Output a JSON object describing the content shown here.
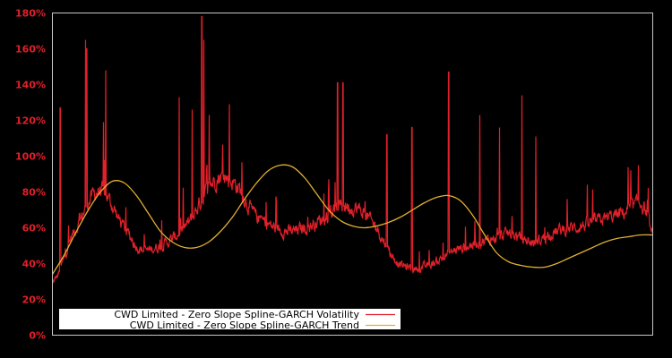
{
  "chart_data": {
    "type": "line",
    "title": "",
    "xlabel": "",
    "ylabel": "",
    "ylim": [
      0,
      180
    ],
    "y_ticks": [
      "0%",
      "20%",
      "40%",
      "60%",
      "80%",
      "100%",
      "120%",
      "140%",
      "160%",
      "180%"
    ],
    "grid": false,
    "legend_position": "lower left",
    "background": "#000000",
    "axis_frame_color": "#c8c8c8",
    "tick_label_color": "#e0202a",
    "x_range_index": [
      0,
      100
    ],
    "series": [
      {
        "name": "CWD Limited - Zero Slope Spline-GARCH Volatility",
        "color": "#e0202a",
        "note": "noisy daily volatility; baseline values approximate (x as % of time range, y in %)",
        "baseline": [
          [
            0,
            28
          ],
          [
            1,
            33
          ],
          [
            2,
            42
          ],
          [
            3,
            52
          ],
          [
            4,
            58
          ],
          [
            5,
            65
          ],
          [
            6,
            72
          ],
          [
            7,
            77
          ],
          [
            8,
            78
          ],
          [
            9,
            76
          ],
          [
            10,
            70
          ],
          [
            11,
            63
          ],
          [
            12,
            58
          ],
          [
            13,
            53
          ],
          [
            14,
            48
          ],
          [
            15,
            46
          ],
          [
            16,
            46
          ],
          [
            17,
            47
          ],
          [
            18,
            48
          ],
          [
            19,
            50
          ],
          [
            20,
            52
          ],
          [
            21,
            55
          ],
          [
            22,
            58
          ],
          [
            23,
            62
          ],
          [
            24,
            68
          ],
          [
            25,
            74
          ],
          [
            26,
            80
          ],
          [
            27,
            84
          ],
          [
            28,
            86
          ],
          [
            29,
            85
          ],
          [
            30,
            83
          ],
          [
            31,
            80
          ],
          [
            32,
            74
          ],
          [
            33,
            68
          ],
          [
            34,
            64
          ],
          [
            35,
            62
          ],
          [
            36,
            60
          ],
          [
            37,
            58
          ],
          [
            38,
            57
          ],
          [
            39,
            56
          ],
          [
            40,
            56
          ],
          [
            41,
            57
          ],
          [
            42,
            58
          ],
          [
            43,
            59
          ],
          [
            44,
            61
          ],
          [
            45,
            63
          ],
          [
            46,
            65
          ],
          [
            47,
            68
          ],
          [
            48,
            70
          ],
          [
            49,
            70
          ],
          [
            50,
            69
          ],
          [
            51,
            68
          ],
          [
            52,
            66
          ],
          [
            53,
            62
          ],
          [
            54,
            58
          ],
          [
            55,
            52
          ],
          [
            56,
            46
          ],
          [
            57,
            41
          ],
          [
            58,
            38
          ],
          [
            59,
            37
          ],
          [
            60,
            36
          ],
          [
            61,
            36
          ],
          [
            62,
            37
          ],
          [
            63,
            38
          ],
          [
            64,
            40
          ],
          [
            65,
            42
          ],
          [
            66,
            44
          ],
          [
            67,
            46
          ],
          [
            68,
            47
          ],
          [
            69,
            48
          ],
          [
            70,
            49
          ],
          [
            71,
            50
          ],
          [
            72,
            51
          ],
          [
            73,
            52
          ],
          [
            74,
            53
          ],
          [
            75,
            54
          ],
          [
            76,
            55
          ],
          [
            77,
            54
          ],
          [
            78,
            52
          ],
          [
            79,
            51
          ],
          [
            80,
            50
          ],
          [
            81,
            51
          ],
          [
            82,
            53
          ],
          [
            83,
            55
          ],
          [
            84,
            56
          ],
          [
            85,
            57
          ],
          [
            86,
            58
          ],
          [
            87,
            58
          ],
          [
            88,
            59
          ],
          [
            89,
            60
          ],
          [
            90,
            61
          ],
          [
            91,
            62
          ],
          [
            92,
            63
          ],
          [
            93,
            64
          ],
          [
            94,
            65
          ],
          [
            95,
            66
          ],
          [
            96,
            68
          ],
          [
            97,
            70
          ],
          [
            98,
            72
          ],
          [
            99,
            66
          ],
          [
            100,
            52
          ]
        ],
        "spikes": [
          [
            1.3,
            127
          ],
          [
            5.5,
            165
          ],
          [
            5.7,
            160
          ],
          [
            8.9,
            148
          ],
          [
            8.5,
            119
          ],
          [
            24.9,
            178
          ],
          [
            25.2,
            165
          ],
          [
            21.1,
            133
          ],
          [
            23.3,
            126
          ],
          [
            26.1,
            123
          ],
          [
            29.5,
            129
          ],
          [
            47.5,
            141
          ],
          [
            48.4,
            141
          ],
          [
            55.7,
            112
          ],
          [
            59.9,
            116
          ],
          [
            66.0,
            147
          ],
          [
            71.2,
            123
          ],
          [
            74.5,
            116
          ],
          [
            78.2,
            134
          ],
          [
            80.5,
            111
          ],
          [
            97.6,
            95
          ]
        ]
      },
      {
        "name": "CWD Limited - Zero Slope Spline-GARCH Trend",
        "color": "#e0b030",
        "points": [
          [
            0,
            34
          ],
          [
            2,
            45
          ],
          [
            4,
            58
          ],
          [
            6,
            70
          ],
          [
            8,
            80
          ],
          [
            10,
            86
          ],
          [
            12,
            85
          ],
          [
            14,
            78
          ],
          [
            16,
            68
          ],
          [
            18,
            58
          ],
          [
            20,
            52
          ],
          [
            22,
            49
          ],
          [
            24,
            49
          ],
          [
            26,
            52
          ],
          [
            28,
            58
          ],
          [
            30,
            66
          ],
          [
            32,
            76
          ],
          [
            34,
            85
          ],
          [
            36,
            92
          ],
          [
            38,
            95
          ],
          [
            40,
            94
          ],
          [
            42,
            88
          ],
          [
            44,
            79
          ],
          [
            46,
            70
          ],
          [
            48,
            64
          ],
          [
            50,
            61
          ],
          [
            52,
            60
          ],
          [
            54,
            61
          ],
          [
            56,
            63
          ],
          [
            58,
            66
          ],
          [
            60,
            70
          ],
          [
            62,
            74
          ],
          [
            64,
            77
          ],
          [
            66,
            78
          ],
          [
            68,
            75
          ],
          [
            70,
            67
          ],
          [
            72,
            56
          ],
          [
            74,
            46
          ],
          [
            76,
            41
          ],
          [
            78,
            39
          ],
          [
            80,
            38
          ],
          [
            82,
            38
          ],
          [
            84,
            40
          ],
          [
            86,
            43
          ],
          [
            88,
            46
          ],
          [
            90,
            49
          ],
          [
            92,
            52
          ],
          [
            94,
            54
          ],
          [
            96,
            55
          ],
          [
            98,
            56
          ],
          [
            100,
            56
          ]
        ]
      }
    ]
  },
  "legend": {
    "items": [
      {
        "label": "CWD Limited - Zero Slope Spline-GARCH Volatility",
        "color": "#e0202a"
      },
      {
        "label": "CWD Limited - Zero Slope Spline-GARCH Trend",
        "color": "#e0b030"
      }
    ]
  }
}
